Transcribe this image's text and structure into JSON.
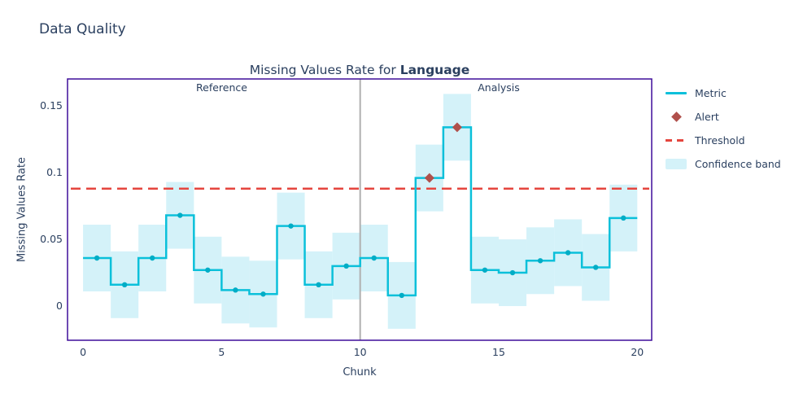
{
  "page": {
    "title": "Data Quality"
  },
  "colors": {
    "text": "#2a3f5f",
    "plot_border": "#3e0d9a",
    "separator": "#b0b0b0",
    "metric_line": "#0bc0da",
    "metric_marker": "#00adc6",
    "confidence_band": "#d4f2f9",
    "threshold": "#e5453e",
    "alert": "#b0504b",
    "background": "#ffffff"
  },
  "chart_data": {
    "type": "line",
    "subtype": "step-line-with-confidence-band",
    "title": "Missing Values Rate for Language",
    "title_prefix": "Missing Values Rate for ",
    "title_bold": "Language",
    "xlabel": "Chunk",
    "ylabel": "Missing Values Rate",
    "chunks": [
      0,
      1,
      2,
      3,
      4,
      5,
      6,
      7,
      8,
      9,
      10,
      11,
      12,
      13,
      14,
      15,
      16,
      17,
      18,
      19
    ],
    "values": [
      0.036,
      0.016,
      0.036,
      0.068,
      0.027,
      0.012,
      0.009,
      0.06,
      0.016,
      0.03,
      0.036,
      0.008,
      0.096,
      0.134,
      0.027,
      0.025,
      0.034,
      0.04,
      0.029,
      0.066
    ],
    "band_margin": 0.025,
    "threshold": 0.088,
    "alerts": [
      12,
      13
    ],
    "alert_values": [
      0.096,
      0.134
    ],
    "separator_x": 10,
    "regions": [
      {
        "label": "Reference",
        "from": 0,
        "to": 10
      },
      {
        "label": "Analysis",
        "from": 10,
        "to": 20
      }
    ],
    "x_ticks": [
      0,
      5,
      10,
      15,
      20
    ],
    "y_ticks": [
      0,
      0.05,
      0.1,
      0.15
    ],
    "xlim": [
      -0.56,
      20.52
    ],
    "ylim": [
      -0.0256,
      0.1702
    ],
    "grid": false,
    "legend_position": "right",
    "legend": [
      {
        "label": "Metric"
      },
      {
        "label": "Alert"
      },
      {
        "label": "Threshold"
      },
      {
        "label": "Confidence band"
      }
    ]
  }
}
